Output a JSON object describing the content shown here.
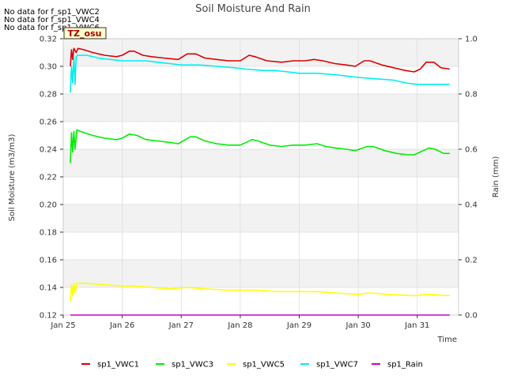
{
  "chart_data": {
    "type": "line",
    "title": "Soil Moisture And Rain",
    "xlabel": "Time",
    "ylabel": "Soil Moisture (m3/m3)",
    "y2label": "Rain (mm)",
    "ylim": [
      0.12,
      0.32
    ],
    "y2lim": [
      0.0,
      1.0
    ],
    "xlim": [
      0,
      6.7
    ],
    "x_ticks": [
      {
        "v": 0,
        "label": "Jan 25"
      },
      {
        "v": 1,
        "label": "Jan 26"
      },
      {
        "v": 2,
        "label": "Jan 27"
      },
      {
        "v": 3,
        "label": "Jan 28"
      },
      {
        "v": 4,
        "label": "Jan 29"
      },
      {
        "v": 5,
        "label": "Jan 30"
      },
      {
        "v": 6,
        "label": "Jan 31"
      }
    ],
    "y_ticks": [
      "0.12",
      "0.14",
      "0.16",
      "0.18",
      "0.20",
      "0.22",
      "0.24",
      "0.26",
      "0.28",
      "0.30",
      "0.32"
    ],
    "y2_ticks": [
      "0.0",
      "0.2",
      "0.4",
      "0.6",
      "0.8",
      "1.0"
    ],
    "no_data_messages": [
      "No data for f_sp1_VWC2",
      "No data for f_sp1_VWC4",
      "No data for f_sp1_VWC6"
    ],
    "tooltip_label": "TZ_osu",
    "series": [
      {
        "name": "sp1_VWC1",
        "color": "#dd0000",
        "points": [
          [
            0.12,
            0.3
          ],
          [
            0.14,
            0.312
          ],
          [
            0.16,
            0.305
          ],
          [
            0.18,
            0.313
          ],
          [
            0.22,
            0.31
          ],
          [
            0.25,
            0.313
          ],
          [
            0.35,
            0.312
          ],
          [
            0.5,
            0.31
          ],
          [
            0.7,
            0.308
          ],
          [
            0.9,
            0.307
          ],
          [
            1.0,
            0.308
          ],
          [
            1.12,
            0.311
          ],
          [
            1.2,
            0.311
          ],
          [
            1.35,
            0.308
          ],
          [
            1.5,
            0.307
          ],
          [
            1.7,
            0.306
          ],
          [
            1.95,
            0.305
          ],
          [
            2.1,
            0.309
          ],
          [
            2.25,
            0.309
          ],
          [
            2.4,
            0.306
          ],
          [
            2.6,
            0.305
          ],
          [
            2.8,
            0.304
          ],
          [
            3.0,
            0.304
          ],
          [
            3.15,
            0.308
          ],
          [
            3.25,
            0.307
          ],
          [
            3.45,
            0.304
          ],
          [
            3.7,
            0.303
          ],
          [
            3.9,
            0.304
          ],
          [
            4.1,
            0.304
          ],
          [
            4.25,
            0.305
          ],
          [
            4.4,
            0.304
          ],
          [
            4.6,
            0.302
          ],
          [
            4.8,
            0.301
          ],
          [
            4.95,
            0.3
          ],
          [
            5.1,
            0.304
          ],
          [
            5.2,
            0.304
          ],
          [
            5.4,
            0.301
          ],
          [
            5.6,
            0.299
          ],
          [
            5.8,
            0.297
          ],
          [
            5.95,
            0.296
          ],
          [
            6.05,
            0.298
          ],
          [
            6.15,
            0.303
          ],
          [
            6.28,
            0.303
          ],
          [
            6.4,
            0.299
          ],
          [
            6.55,
            0.298
          ]
        ]
      },
      {
        "name": "sp1_VWC3",
        "color": "#00ee00",
        "points": [
          [
            0.12,
            0.23
          ],
          [
            0.14,
            0.252
          ],
          [
            0.16,
            0.238
          ],
          [
            0.18,
            0.253
          ],
          [
            0.2,
            0.24
          ],
          [
            0.23,
            0.254
          ],
          [
            0.35,
            0.252
          ],
          [
            0.5,
            0.25
          ],
          [
            0.7,
            0.248
          ],
          [
            0.9,
            0.247
          ],
          [
            1.0,
            0.248
          ],
          [
            1.12,
            0.251
          ],
          [
            1.25,
            0.25
          ],
          [
            1.4,
            0.247
          ],
          [
            1.6,
            0.246
          ],
          [
            1.8,
            0.245
          ],
          [
            1.95,
            0.244
          ],
          [
            2.15,
            0.249
          ],
          [
            2.25,
            0.249
          ],
          [
            2.4,
            0.246
          ],
          [
            2.6,
            0.244
          ],
          [
            2.8,
            0.243
          ],
          [
            3.0,
            0.243
          ],
          [
            3.2,
            0.247
          ],
          [
            3.3,
            0.246
          ],
          [
            3.5,
            0.243
          ],
          [
            3.7,
            0.242
          ],
          [
            3.9,
            0.243
          ],
          [
            4.1,
            0.243
          ],
          [
            4.3,
            0.244
          ],
          [
            4.45,
            0.242
          ],
          [
            4.6,
            0.241
          ],
          [
            4.8,
            0.24
          ],
          [
            4.95,
            0.239
          ],
          [
            5.15,
            0.242
          ],
          [
            5.25,
            0.242
          ],
          [
            5.45,
            0.239
          ],
          [
            5.65,
            0.237
          ],
          [
            5.85,
            0.236
          ],
          [
            5.95,
            0.236
          ],
          [
            6.1,
            0.239
          ],
          [
            6.2,
            0.241
          ],
          [
            6.3,
            0.24
          ],
          [
            6.45,
            0.237
          ],
          [
            6.55,
            0.237
          ]
        ]
      },
      {
        "name": "sp1_VWC5",
        "color": "#ffff00",
        "points": [
          [
            0.12,
            0.13
          ],
          [
            0.14,
            0.142
          ],
          [
            0.16,
            0.134
          ],
          [
            0.18,
            0.143
          ],
          [
            0.2,
            0.136
          ],
          [
            0.23,
            0.143
          ],
          [
            0.4,
            0.143
          ],
          [
            0.7,
            0.142
          ],
          [
            1.0,
            0.141
          ],
          [
            1.2,
            0.141
          ],
          [
            1.5,
            0.14
          ],
          [
            1.8,
            0.139
          ],
          [
            2.1,
            0.14
          ],
          [
            2.4,
            0.139
          ],
          [
            2.8,
            0.138
          ],
          [
            3.0,
            0.138
          ],
          [
            3.3,
            0.138
          ],
          [
            3.6,
            0.137
          ],
          [
            4.0,
            0.137
          ],
          [
            4.3,
            0.137
          ],
          [
            4.6,
            0.136
          ],
          [
            5.0,
            0.135
          ],
          [
            5.2,
            0.136
          ],
          [
            5.5,
            0.135
          ],
          [
            5.9,
            0.134
          ],
          [
            6.2,
            0.135
          ],
          [
            6.55,
            0.134
          ]
        ]
      },
      {
        "name": "sp1_VWC7",
        "color": "#00eeee",
        "points": [
          [
            0.12,
            0.281
          ],
          [
            0.14,
            0.3
          ],
          [
            0.16,
            0.288
          ],
          [
            0.18,
            0.307
          ],
          [
            0.2,
            0.287
          ],
          [
            0.22,
            0.307
          ],
          [
            0.24,
            0.308
          ],
          [
            0.4,
            0.308
          ],
          [
            0.6,
            0.306
          ],
          [
            0.8,
            0.305
          ],
          [
            1.0,
            0.304
          ],
          [
            1.2,
            0.304
          ],
          [
            1.4,
            0.304
          ],
          [
            1.6,
            0.303
          ],
          [
            1.8,
            0.302
          ],
          [
            2.0,
            0.301
          ],
          [
            2.3,
            0.301
          ],
          [
            2.6,
            0.3
          ],
          [
            2.9,
            0.299
          ],
          [
            3.1,
            0.298
          ],
          [
            3.4,
            0.297
          ],
          [
            3.6,
            0.297
          ],
          [
            3.8,
            0.296
          ],
          [
            4.0,
            0.295
          ],
          [
            4.3,
            0.295
          ],
          [
            4.6,
            0.294
          ],
          [
            4.8,
            0.293
          ],
          [
            5.0,
            0.292
          ],
          [
            5.3,
            0.291
          ],
          [
            5.6,
            0.29
          ],
          [
            5.8,
            0.288
          ],
          [
            6.0,
            0.287
          ],
          [
            6.3,
            0.287
          ],
          [
            6.55,
            0.287
          ]
        ]
      },
      {
        "name": "sp1_Rain",
        "color": "#cc00cc",
        "axis": "right",
        "points": [
          [
            0.12,
            0.0
          ],
          [
            6.55,
            0.0
          ]
        ]
      }
    ]
  }
}
